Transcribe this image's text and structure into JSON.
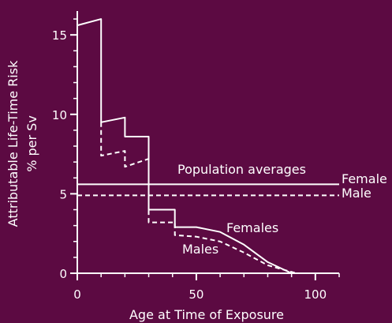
{
  "chart_data": {
    "type": "line",
    "xlabel": "Age at Time of Exposure",
    "ylabel": "Attributable Life-Time Risk",
    "ylabel_units": "% per Sv",
    "xlim": [
      0,
      110
    ],
    "ylim": [
      0,
      16.5
    ],
    "x_ticks": [
      0,
      50,
      100
    ],
    "y_ticks": [
      0,
      5,
      10,
      15
    ],
    "grid": false,
    "colors": {
      "background": "#5c0a42",
      "foreground": "#ffffff"
    },
    "series": [
      {
        "name": "Females",
        "style": "solid",
        "points": [
          [
            0,
            15.6
          ],
          [
            0,
            15.6
          ],
          [
            10,
            16
          ],
          [
            10,
            9.5
          ],
          [
            20,
            9.8
          ],
          [
            20,
            8.6
          ],
          [
            30,
            8.6
          ],
          [
            30,
            4.0
          ],
          [
            41,
            4.0
          ],
          [
            41,
            2.9
          ],
          [
            50,
            2.9
          ],
          [
            60,
            2.6
          ],
          [
            70,
            1.8
          ],
          [
            80,
            0.7
          ],
          [
            90,
            0.0
          ]
        ]
      },
      {
        "name": "Males",
        "style": "dashed",
        "points": [
          [
            10,
            9.5
          ],
          [
            10,
            7.4
          ],
          [
            20,
            7.7
          ],
          [
            20,
            6.7
          ],
          [
            30,
            7.2
          ],
          [
            30,
            3.2
          ],
          [
            41,
            3.2
          ],
          [
            41,
            2.4
          ],
          [
            50,
            2.3
          ],
          [
            60,
            2.0
          ],
          [
            70,
            1.3
          ],
          [
            80,
            0.5
          ],
          [
            92,
            0.0
          ]
        ]
      }
    ],
    "reference_lines": [
      {
        "label": "Female",
        "y": 5.6,
        "style": "solid"
      },
      {
        "label": "Male",
        "y": 4.9,
        "style": "dashed"
      }
    ],
    "annotations": {
      "population": "Population averages",
      "females": "Females",
      "males": "Males"
    }
  }
}
